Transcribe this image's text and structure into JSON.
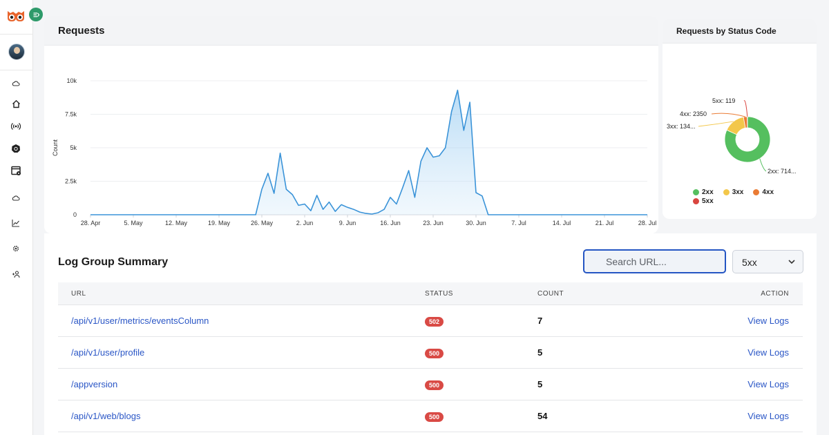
{
  "sidebar": {
    "logo": "owl-logo",
    "collapse_icon": "collapse-icon",
    "nav_icons": [
      "cloud-upload-icon",
      "home-icon",
      "broadcast-icon",
      "kubernetes-icon",
      "dashboard-settings-icon",
      "cloud-check-icon",
      "line-chart-icon",
      "gear-icon",
      "add-user-icon"
    ]
  },
  "requests": {
    "title": "Requests",
    "chart_data": {
      "type": "area",
      "title": "Requests",
      "xlabel": "",
      "ylabel": "Count",
      "ylim": [
        0,
        10000
      ],
      "yticks": [
        "0",
        "2.5k",
        "5k",
        "7.5k",
        "10k"
      ],
      "ytick_values": [
        0,
        2500,
        5000,
        7500,
        10000
      ],
      "xticks": [
        "28. Apr",
        "5. May",
        "12. May",
        "19. May",
        "26. May",
        "2. Jun",
        "9. Jun",
        "16. Jun",
        "23. Jun",
        "30. Jun",
        "7. Jul",
        "14. Jul",
        "21. Jul",
        "28. Jul"
      ],
      "x_days": [
        0,
        7,
        14,
        21,
        28,
        35,
        42,
        49,
        56,
        63,
        70,
        77,
        84,
        91
      ],
      "series": [
        {
          "name": "Count",
          "color": "#3a93d8",
          "x": [
            0,
            2,
            4,
            6,
            8,
            10,
            12,
            14,
            16,
            18,
            20,
            22,
            24,
            26,
            27,
            28,
            29,
            30,
            31,
            32,
            33,
            34,
            35,
            36,
            37,
            38,
            39,
            40,
            41,
            42,
            43,
            44,
            45,
            46,
            47,
            48,
            49,
            50,
            51,
            52,
            53,
            54,
            55,
            56,
            57,
            58,
            59,
            60,
            61,
            62,
            63,
            64,
            65,
            66,
            67,
            68,
            69,
            70,
            71,
            72,
            73,
            74,
            75,
            76,
            77,
            78,
            79,
            80,
            81,
            82,
            83,
            84,
            85,
            86,
            87,
            88,
            89,
            90,
            91
          ],
          "values": [
            0,
            0,
            0,
            0,
            0,
            0,
            0,
            0,
            0,
            0,
            0,
            0,
            0,
            0,
            0,
            1900,
            3100,
            1600,
            4600,
            1900,
            1500,
            700,
            800,
            300,
            1450,
            400,
            950,
            250,
            750,
            550,
            400,
            200,
            100,
            50,
            150,
            400,
            1300,
            800,
            2000,
            3300,
            1300,
            4000,
            5000,
            4300,
            4400,
            5000,
            7700,
            9300,
            6300,
            8400,
            1650,
            1400,
            0,
            0,
            0,
            0,
            0,
            0,
            0,
            0,
            0,
            0,
            0,
            0,
            0,
            0,
            0,
            0,
            0,
            0,
            0,
            0,
            0,
            0,
            0,
            0,
            0,
            0,
            0
          ]
        }
      ]
    }
  },
  "status_codes": {
    "title": "Requests by Status Code",
    "chart_data": {
      "type": "pie",
      "title": "Requests by Status Code",
      "slices": [
        {
          "label": "2xx",
          "value": 71400,
          "display": "2xx: 714...",
          "color": "#55bf5f"
        },
        {
          "label": "3xx",
          "value": 13400,
          "display": "3xx: 134...",
          "color": "#f3c74a"
        },
        {
          "label": "4xx",
          "value": 2350,
          "display": "4xx: 2350",
          "color": "#ea7b34"
        },
        {
          "label": "5xx",
          "value": 119,
          "display": "5xx: 119",
          "color": "#d9453f"
        }
      ],
      "legend": [
        "2xx",
        "3xx",
        "4xx",
        "5xx"
      ]
    }
  },
  "log_summary": {
    "title": "Log Group Summary",
    "search_placeholder": "Search URL...",
    "filter_value": "5xx",
    "columns": {
      "url": "URL",
      "status": "STATUS",
      "count": "COUNT",
      "action": "ACTION"
    },
    "rows": [
      {
        "url": "/api/v1/user/metrics/eventsColumn",
        "status": "502",
        "count": "7",
        "action": "View Logs"
      },
      {
        "url": "/api/v1/user/profile",
        "status": "500",
        "count": "5",
        "action": "View Logs"
      },
      {
        "url": "/appversion",
        "status": "500",
        "count": "5",
        "action": "View Logs"
      },
      {
        "url": "/api/v1/web/blogs",
        "status": "500",
        "count": "54",
        "action": "View Logs"
      }
    ]
  }
}
